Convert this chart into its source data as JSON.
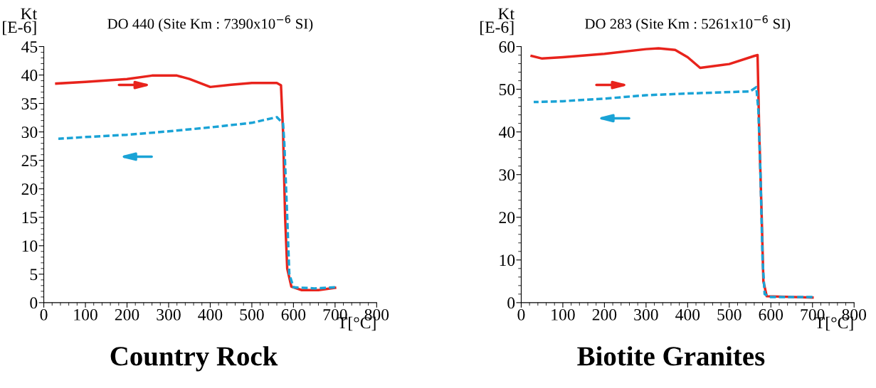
{
  "chart_data": [
    {
      "type": "line",
      "title": "DO 440 (Site Km : 7390x10$^{−6}$ SI)",
      "xlabel": "T[°C]",
      "ylabel": "Kt\n[E-6]",
      "xlim": [
        0,
        800
      ],
      "xticks": [
        0,
        100,
        200,
        300,
        400,
        500,
        600,
        700,
        800
      ],
      "ylim": [
        0,
        45
      ],
      "yticks": [
        0,
        5,
        10,
        15,
        20,
        25,
        30,
        35,
        40,
        45
      ],
      "grid": false,
      "legend": false,
      "annotations": [
        "Country Rock"
      ],
      "series": [
        {
          "color": "#e8231c",
          "line_style": "solid",
          "x": [
            30,
            100,
            200,
            260,
            320,
            350,
            400,
            450,
            500,
            560,
            570,
            575,
            580,
            585,
            595,
            620,
            660,
            700
          ],
          "values": [
            38.5,
            38.8,
            39.3,
            39.9,
            39.9,
            39.3,
            37.9,
            38.3,
            38.6,
            38.6,
            38.2,
            30,
            15,
            6,
            2.8,
            2.2,
            2.2,
            2.6
          ]
        },
        {
          "color": "#1aa3d6",
          "line_style": "dashed",
          "x": [
            700,
            650,
            600,
            590,
            585,
            578,
            575,
            560,
            500,
            400,
            300,
            200,
            100,
            35
          ],
          "values": [
            2.7,
            2.5,
            2.7,
            5,
            15,
            28,
            31.5,
            32.6,
            31.6,
            30.8,
            30.1,
            29.5,
            29.1,
            28.8
          ]
        }
      ]
    },
    {
      "type": "line",
      "title": "DO 283 (Site Km : 5261x10$^{−6}$ SI)",
      "xlabel": "T[°C]",
      "ylabel": "Kt\n[E-6]",
      "xlim": [
        0,
        800
      ],
      "xticks": [
        0,
        100,
        200,
        300,
        400,
        500,
        600,
        700,
        800
      ],
      "ylim": [
        0,
        60
      ],
      "yticks": [
        0,
        10,
        20,
        30,
        40,
        50,
        60
      ],
      "grid": false,
      "legend": false,
      "annotations": [
        "Biotite Granites"
      ],
      "series": [
        {
          "color": "#e8231c",
          "line_style": "solid",
          "x": [
            25,
            50,
            100,
            200,
            300,
            330,
            370,
            400,
            430,
            500,
            560,
            568,
            572,
            578,
            582,
            590,
            700
          ],
          "values": [
            57.8,
            57.2,
            57.5,
            58.3,
            59.4,
            59.6,
            59.2,
            57.5,
            55,
            55.9,
            57.8,
            58,
            40,
            20,
            5,
            1.5,
            1.2
          ]
        },
        {
          "color": "#1aa3d6",
          "line_style": "dashed",
          "x": [
            700,
            600,
            585,
            580,
            575,
            570,
            565,
            550,
            400,
            300,
            200,
            100,
            30
          ],
          "values": [
            1.3,
            1.3,
            2,
            10,
            30,
            45,
            50.5,
            49.5,
            49,
            48.6,
            47.8,
            47.2,
            47
          ]
        }
      ]
    }
  ]
}
